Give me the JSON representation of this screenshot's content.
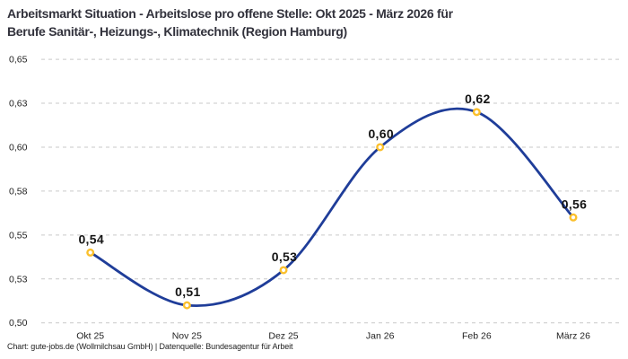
{
  "header": {
    "title_line1": "Arbeitsmarkt Situation - Arbeitslose pro offene Stelle: Okt 2025 - März 2026 für",
    "title_line2": "Berufe Sanitär-, Heizungs-, Klimatechnik (Region Hamburg)"
  },
  "footer": {
    "credit": "Chart: gute-jobs.de (Wollmilchsau GmbH) | Datenquelle: Bundesagentur für Arbeit"
  },
  "chart_data": {
    "type": "line",
    "title": "Arbeitsmarkt Situation - Arbeitslose pro offene Stelle: Okt 2025 - März 2026 für Berufe Sanitär-, Heizungs-, Klimatechnik (Region Hamburg)",
    "categories": [
      "Okt 25",
      "Nov 25",
      "Dez 25",
      "Jan 26",
      "Feb 26",
      "März 26"
    ],
    "values": [
      0.54,
      0.51,
      0.53,
      0.6,
      0.62,
      0.56
    ],
    "point_labels": [
      "0,54",
      "0,51",
      "0,53",
      "0,60",
      "0,62",
      "0,56"
    ],
    "ylim": [
      0.5,
      0.65
    ],
    "yticks": [
      0.5,
      0.525,
      0.55,
      0.575,
      0.6,
      0.625,
      0.65
    ],
    "ytick_labels": [
      "0,50",
      "0,53",
      "0,55",
      "0,58",
      "0,60",
      "0,63",
      "0,65"
    ],
    "xlabel": "",
    "ylabel": "",
    "legend": "none",
    "grid": "horizontal-dashed",
    "line_smoothing": "spline",
    "colors": {
      "line": "#1f3d99",
      "marker_stroke": "#fbc02d",
      "marker_fill": "#ffffff",
      "grid": "#c9c9c9",
      "axis_text": "#222222",
      "point_label_text": "#151515",
      "title_text": "#32323c",
      "background": "#ffffff"
    }
  }
}
